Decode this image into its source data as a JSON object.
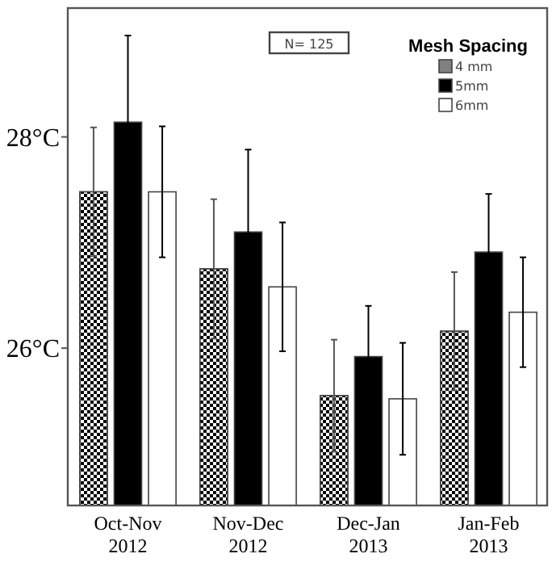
{
  "chart_data": {
    "type": "bar",
    "categories": [
      "Oct-Nov 2012",
      "Nov-Dec 2012",
      "Dec-Jan 2013",
      "Jan-Feb 2013"
    ],
    "series": [
      {
        "name": "4 mm",
        "color": "#808080",
        "values": [
          27.48,
          26.75,
          25.55,
          26.16
        ],
        "errors": [
          0.61,
          0.66,
          0.53,
          0.56
        ]
      },
      {
        "name": "5mm",
        "color": "#000000",
        "values": [
          28.14,
          27.1,
          25.92,
          26.91
        ],
        "errors": [
          0.82,
          0.78,
          0.48,
          0.55
        ]
      },
      {
        "name": "6mm",
        "color": "#ffffff",
        "values": [
          27.48,
          26.58,
          25.52,
          26.34
        ],
        "errors": [
          0.62,
          0.61,
          0.53,
          0.52
        ]
      }
    ],
    "ylim": [
      24.51,
      29.22
    ],
    "yticks": [
      {
        "value": 26,
        "label": "26°C"
      },
      {
        "value": 28,
        "label": "28°C"
      }
    ],
    "legend": "top right",
    "legend_title": "Mesh Spacing",
    "annotations": [
      "N= 125"
    ],
    "grid": false
  }
}
